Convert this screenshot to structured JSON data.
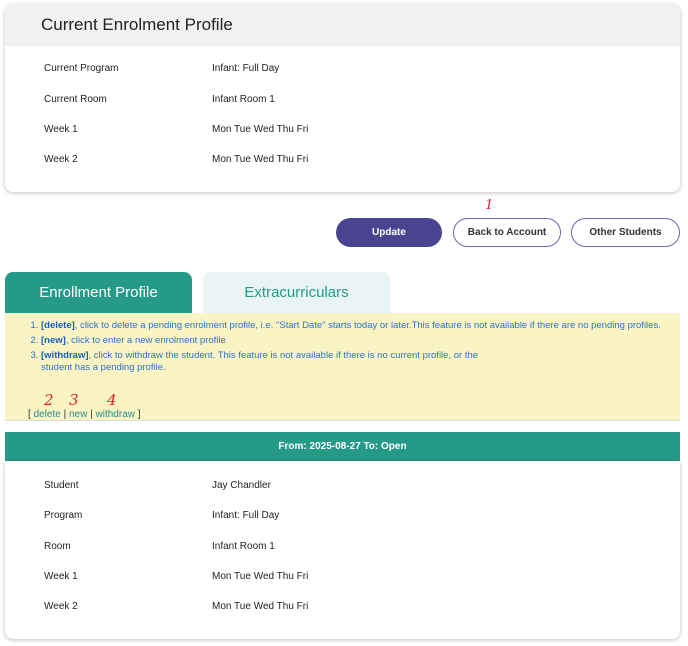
{
  "current_profile": {
    "title": "Current Enrolment Profile",
    "rows": [
      {
        "label": "Current Program",
        "value": "Infant: Full Day"
      },
      {
        "label": "Current Room",
        "value": "Infant Room 1"
      },
      {
        "label": "Week 1",
        "value": "Mon Tue Wed Thu Fri"
      },
      {
        "label": "Week 2",
        "value": "Mon Tue Wed Thu Fri"
      }
    ]
  },
  "actions": {
    "update": "Update",
    "back": "Back to Account",
    "other": "Other Students"
  },
  "tabs": [
    {
      "label": "Enrollment Profile",
      "active": true
    },
    {
      "label": "Extracurriculars",
      "active": false
    }
  ],
  "info": [
    {
      "key": "[delete]",
      "text": ", click to delete a pending enrolment profile, i.e. \"Start Date\" starts today or later.This feature is not available if there are no pending profiles."
    },
    {
      "key": "[new]",
      "text": ", click to enter a new enrolment profile"
    },
    {
      "key": "[withdraw]",
      "text": ", click to withdraw the student. This feature is not available if there is no current profile, or the student has a pending profile."
    }
  ],
  "links": {
    "open": "[",
    "delete": "delete",
    "sep": "|",
    "new": "new",
    "withdraw": "withdraw",
    "close": "]"
  },
  "annotations": [
    "1",
    "2",
    "3",
    "4"
  ],
  "period": "From: 2025-08-27 To: Open",
  "profile": {
    "rows": [
      {
        "label": "Student",
        "value": "Jay Chandler"
      },
      {
        "label": "Program",
        "value": "Infant: Full Day"
      },
      {
        "label": "Room",
        "value": "Infant Room 1"
      },
      {
        "label": "Week 1",
        "value": "Mon Tue Wed Thu Fri"
      },
      {
        "label": "Week 2",
        "value": "Mon Tue Wed Thu Fri"
      }
    ]
  },
  "colors": {
    "teal": "#259a87",
    "primary": "#4a438f",
    "info_bg": "#faf4c4"
  }
}
